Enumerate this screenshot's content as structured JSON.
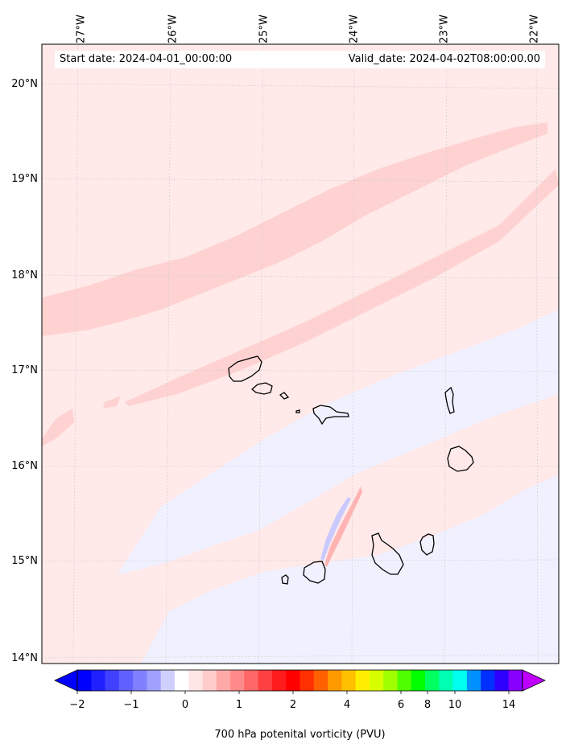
{
  "map": {
    "longitude_labels": [
      "27°W",
      "26°W",
      "25°W",
      "24°W",
      "23°W",
      "22°W"
    ],
    "latitude_labels": [
      "20°N",
      "19°N",
      "18°N",
      "17°N",
      "16°N",
      "15°N",
      "14°N"
    ],
    "start_date": "Start date: 2024-04-01_00:00:00",
    "valid_date": "Valid_date: 2024-04-02T08:00:00.00",
    "islands": [
      "Santo Antão",
      "São Vicente",
      "Santa Luzia",
      "Branco",
      "São Nicolau",
      "Sal",
      "Boa Vista",
      "Maio",
      "Santiago",
      "Fogo",
      "Brava"
    ],
    "field_colors": {
      "background": "#ffe9e9",
      "band": "#ffd2d2",
      "negative": "#f0f0ff",
      "neg_streak": "#c9c9ff",
      "pos_streak": "#ffb3b3"
    }
  },
  "colorbar": {
    "title": "700 hPa potenital vorticity (PVU)",
    "tick_labels": [
      "−2",
      "−1",
      "0",
      "1",
      "2",
      "4",
      "6",
      "8",
      "10",
      "14"
    ],
    "colors": [
      "#0000ff",
      "#2020ff",
      "#4040ff",
      "#6060ff",
      "#8080ff",
      "#a0a0ff",
      "#d0d0ff",
      "#ffffff",
      "#ffe6e6",
      "#ffcccc",
      "#ffa8a8",
      "#ff8a8a",
      "#ff6666",
      "#ff4040",
      "#ff1c1c",
      "#ff0000",
      "#ff3000",
      "#ff6000",
      "#ff9900",
      "#ffc000",
      "#ffee00",
      "#d8ff00",
      "#a0ff00",
      "#50ff00",
      "#00ff00",
      "#00ff60",
      "#00ffb0",
      "#00ffee",
      "#0090ff",
      "#0030ff",
      "#3000ff",
      "#8800ff"
    ],
    "extend_low": "#0000ff",
    "extend_high": "#c000ff"
  }
}
